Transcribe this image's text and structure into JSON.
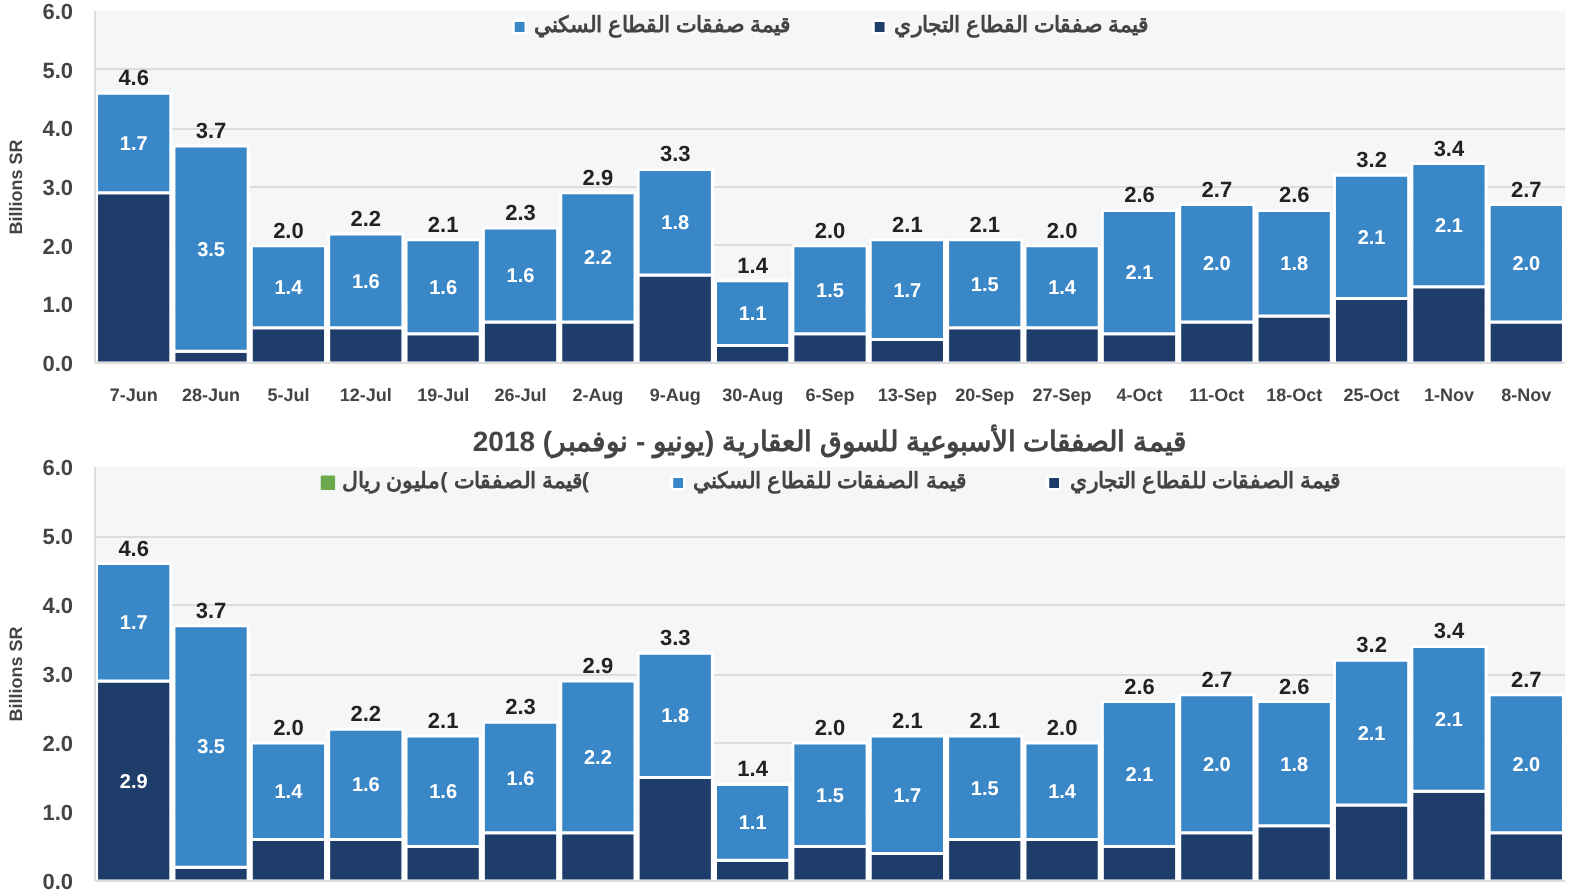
{
  "chart_data": [
    {
      "type": "bar",
      "stacked": true,
      "ylabel": "Billions SR",
      "categories": [
        "7-Jun",
        "28-Jun",
        "5-Jul",
        "12-Jul",
        "19-Jul",
        "26-Jul",
        "2-Aug",
        "9-Aug",
        "30-Aug",
        "6-Sep",
        "13-Sep",
        "20-Sep",
        "27-Sep",
        "4-Oct",
        "11-Oct",
        "18-Oct",
        "25-Oct",
        "1-Nov",
        "8-Nov"
      ],
      "series": [
        {
          "name": "قيمة صفقات القطاع التجاري",
          "color": "#1f3d6b",
          "values": [
            2.9,
            0.2,
            0.6,
            0.6,
            0.5,
            0.7,
            0.7,
            1.5,
            0.3,
            0.5,
            0.4,
            0.6,
            0.6,
            0.5,
            0.7,
            0.8,
            1.1,
            1.3,
            0.7
          ]
        },
        {
          "name": "قيمة صفقات القطاع السكني",
          "color": "#3a87c8",
          "values": [
            1.7,
            3.5,
            1.4,
            1.6,
            1.6,
            1.6,
            2.2,
            1.8,
            1.1,
            1.5,
            1.7,
            1.5,
            1.4,
            2.1,
            2.0,
            1.8,
            2.1,
            2.1,
            2.0
          ],
          "value_labels": [
            "1.7",
            "3.5",
            "1.4",
            "1.6",
            "1.6",
            "1.6",
            "2.2",
            "1.8",
            "1.1",
            "1.5",
            "1.7",
            "1.5",
            "1.4",
            "2.1",
            "2.0",
            "1.8",
            "2.1",
            "2.1",
            "2.0"
          ]
        }
      ],
      "totals": [
        "4.6",
        "3.7",
        "2.0",
        "2.2",
        "2.1",
        "2.3",
        "2.9",
        "3.3",
        "1.4",
        "2.0",
        "2.1",
        "2.1",
        "2.0",
        "2.6",
        "2.7",
        "2.6",
        "3.2",
        "3.4",
        "2.7"
      ],
      "ylim": [
        0,
        6
      ],
      "yticks": [
        {
          "value": 0,
          "label": "0.0"
        },
        {
          "value": 1,
          "label": "1.0"
        },
        {
          "value": 2,
          "label": "2.0"
        },
        {
          "value": 3,
          "label": "3.0"
        },
        {
          "value": 4,
          "label": "4.0"
        },
        {
          "value": 5,
          "label": "5.0"
        },
        {
          "value": 6,
          "label": "6.0"
        }
      ],
      "grid": "y",
      "legend": "top"
    },
    {
      "type": "bar",
      "stacked": true,
      "title": "قيمة الصفقات الأسبوعية للسوق العقارية (يونيو - نوفمبر) 2018",
      "ylabel": "Billions SR",
      "categories": [
        null,
        null,
        null,
        null,
        null,
        null,
        null,
        null,
        null,
        null,
        null,
        null,
        null,
        null,
        null,
        null,
        null,
        null,
        null
      ],
      "series": [
        {
          "name": "قيمة الصفقات للقطاع التجاري",
          "color": "#1f3d6b",
          "values": [
            2.9,
            0.2,
            0.6,
            0.6,
            0.5,
            0.7,
            0.7,
            1.5,
            0.3,
            0.5,
            0.4,
            0.6,
            0.6,
            0.5,
            0.7,
            0.8,
            1.1,
            1.3,
            0.7
          ],
          "value_labels": [
            "2.9",
            null,
            null,
            null,
            null,
            null,
            null,
            null,
            null,
            null,
            null,
            null,
            null,
            null,
            null,
            null,
            null,
            null,
            null
          ]
        },
        {
          "name": "قيمة الصفقات للقطاع السكني",
          "color": "#3a87c8",
          "values": [
            1.7,
            3.5,
            1.4,
            1.6,
            1.6,
            1.6,
            2.2,
            1.8,
            1.1,
            1.5,
            1.7,
            1.5,
            1.4,
            2.1,
            2.0,
            1.8,
            2.1,
            2.1,
            2.0
          ],
          "value_labels": [
            "1.7",
            "3.5",
            "1.4",
            "1.6",
            "1.6",
            "1.6",
            "2.2",
            "1.8",
            "1.1",
            "1.5",
            "1.7",
            "1.5",
            "1.4",
            "2.1",
            "2.0",
            "1.8",
            "2.1",
            "2.1",
            "2.0"
          ]
        },
        {
          "name": "قيمة الصفقات )مليون ريال(",
          "color": "#6aaa4c",
          "values": [
            null,
            null,
            null,
            null,
            null,
            null,
            null,
            null,
            null,
            null,
            null,
            null,
            null,
            null,
            null,
            null,
            null,
            null,
            null
          ]
        }
      ],
      "totals": [
        "4.6",
        "3.7",
        "2.0",
        "2.2",
        "2.1",
        "2.3",
        "2.9",
        "3.3",
        "1.4",
        "2.0",
        "2.1",
        "2.1",
        "2.0",
        "2.6",
        "2.7",
        "2.6",
        "3.2",
        "3.4",
        "2.7"
      ],
      "ylim": [
        0,
        6
      ],
      "yticks": [
        {
          "value": 0,
          "label": "0.0"
        },
        {
          "value": 1,
          "label": "1.0"
        },
        {
          "value": 2,
          "label": "2.0"
        },
        {
          "value": 3,
          "label": "3.0"
        },
        {
          "value": 4,
          "label": "4.0"
        },
        {
          "value": 5,
          "label": "5.0"
        },
        {
          "value": 6,
          "label": "6.0"
        }
      ],
      "grid": "y",
      "legend": "top",
      "tick_labels": "y"
    }
  ]
}
